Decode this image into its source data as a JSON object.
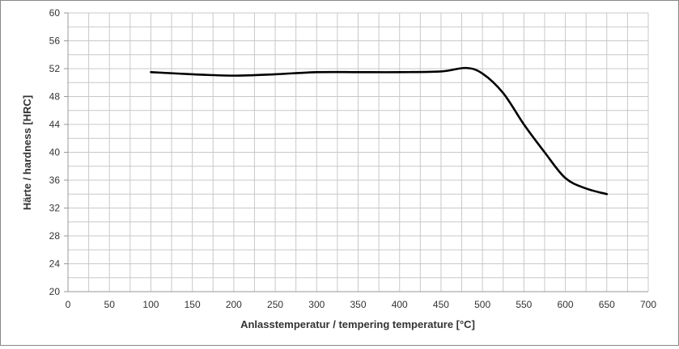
{
  "chart_data": {
    "type": "line",
    "title": "",
    "xlabel": "Anlasstemperatur / tempering temperature [°C]",
    "ylabel": "Härte / hardness [HRC]",
    "xlim": [
      0,
      700
    ],
    "ylim": [
      20,
      60
    ],
    "x_ticks": [
      0,
      50,
      100,
      150,
      200,
      250,
      300,
      350,
      400,
      450,
      500,
      550,
      600,
      650,
      700
    ],
    "y_ticks": [
      20,
      24,
      28,
      32,
      36,
      40,
      44,
      48,
      52,
      56,
      60
    ],
    "x_minor_step": 25,
    "y_minor_step": 2,
    "grid": true,
    "series": [
      {
        "name": "hardness",
        "color": "#000000",
        "x": [
          100,
          150,
          200,
          250,
          300,
          350,
          400,
          450,
          480,
          500,
          525,
          550,
          575,
          600,
          625,
          650
        ],
        "y": [
          51.5,
          51.2,
          51.0,
          51.2,
          51.5,
          51.5,
          51.5,
          51.6,
          52.1,
          51.3,
          48.5,
          44.0,
          40.0,
          36.3,
          34.8,
          34.0
        ]
      }
    ]
  }
}
